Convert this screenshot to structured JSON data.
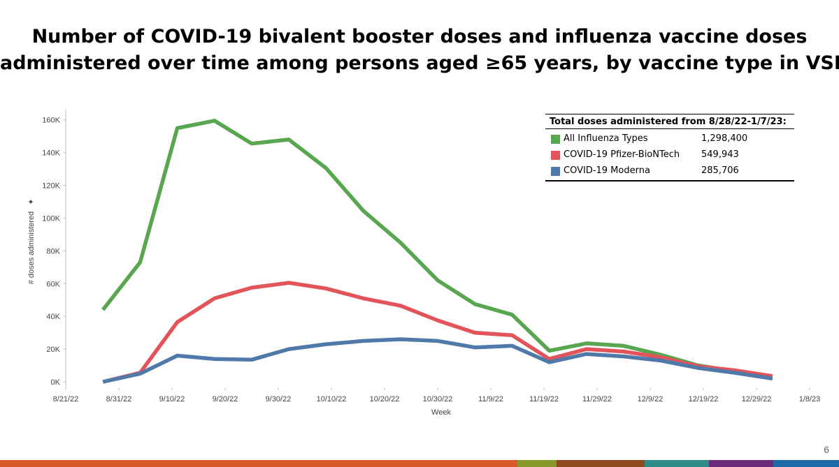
{
  "slide": {
    "title_line1": "Number of COVID-19 bivalent booster doses and influenza vaccine doses",
    "title_line2": "administered over time among persons aged ≥65 years, by vaccine type in VSD",
    "page_number": "6"
  },
  "legend": {
    "header": "Total doses administered from 8/28/22-1/7/23:",
    "items": [
      {
        "name": "All Influenza Types",
        "total": "1,298,400",
        "color": "#58A64F"
      },
      {
        "name": "COVID-19 Pfizer-BioNTech",
        "total": "549,943",
        "color": "#E2545A"
      },
      {
        "name": "COVID-19 Moderna",
        "total": "285,706",
        "color": "#4E79A9"
      }
    ]
  },
  "footer_colors": [
    "#D9592B",
    "#8A9A2A",
    "#8E4A1E",
    "#2E8B86",
    "#6D2A7A",
    "#1C6AA8"
  ],
  "chart_data": {
    "type": "line",
    "title": "Number of COVID-19 bivalent booster doses and influenza vaccine doses administered over time among persons aged ≥65 years, by vaccine type in VSD",
    "xlabel": "Week",
    "ylabel": "# doses administered",
    "x_ticks": [
      "8/21/22",
      "8/31/22",
      "9/10/22",
      "9/20/22",
      "9/30/22",
      "10/10/22",
      "10/20/22",
      "10/30/22",
      "11/9/22",
      "11/19/22",
      "11/29/22",
      "12/9/22",
      "12/19/22",
      "12/29/22",
      "1/8/23"
    ],
    "x_tick_days": [
      0,
      10,
      20,
      30,
      40,
      50,
      60,
      70,
      80,
      90,
      100,
      110,
      120,
      130,
      140
    ],
    "y_ticks": [
      "0K",
      "20K",
      "40K",
      "60K",
      "80K",
      "100K",
      "120K",
      "140K",
      "160K"
    ],
    "ylim": [
      0,
      165000
    ],
    "xlim_days": [
      0,
      140
    ],
    "x_days_note": "days since 8/21/22",
    "series": [
      {
        "name": "All Influenza Types",
        "color": "#58A64F",
        "x_days": [
          7,
          14,
          21,
          28,
          35,
          42,
          49,
          56,
          63,
          70,
          77,
          84,
          91,
          98,
          105,
          112,
          119,
          126,
          133
        ],
        "values": [
          44000,
          73000,
          155000,
          159500,
          145500,
          148000,
          130500,
          104500,
          85000,
          62000,
          47500,
          41000,
          19000,
          23500,
          22000,
          16500,
          10000,
          6500,
          2000
        ]
      },
      {
        "name": "COVID-19 Pfizer-BioNTech",
        "color": "#E2545A",
        "x_days": [
          7,
          14,
          21,
          28,
          35,
          42,
          49,
          56,
          63,
          70,
          77,
          84,
          91,
          98,
          105,
          112,
          119,
          126,
          133
        ],
        "values": [
          0,
          5500,
          36500,
          51000,
          57500,
          60500,
          57000,
          51000,
          46500,
          37500,
          30000,
          28500,
          14000,
          20000,
          18500,
          15000,
          9500,
          7000,
          3500
        ]
      },
      {
        "name": "COVID-19 Moderna",
        "color": "#4E79A9",
        "x_days": [
          7,
          14,
          21,
          28,
          35,
          42,
          49,
          56,
          63,
          70,
          77,
          84,
          91,
          98,
          105,
          112,
          119,
          126,
          133
        ],
        "values": [
          0,
          5000,
          16000,
          14000,
          13500,
          20000,
          23000,
          25000,
          26000,
          25000,
          21000,
          22000,
          12000,
          17000,
          15500,
          13000,
          8500,
          5500,
          2000
        ]
      }
    ]
  }
}
